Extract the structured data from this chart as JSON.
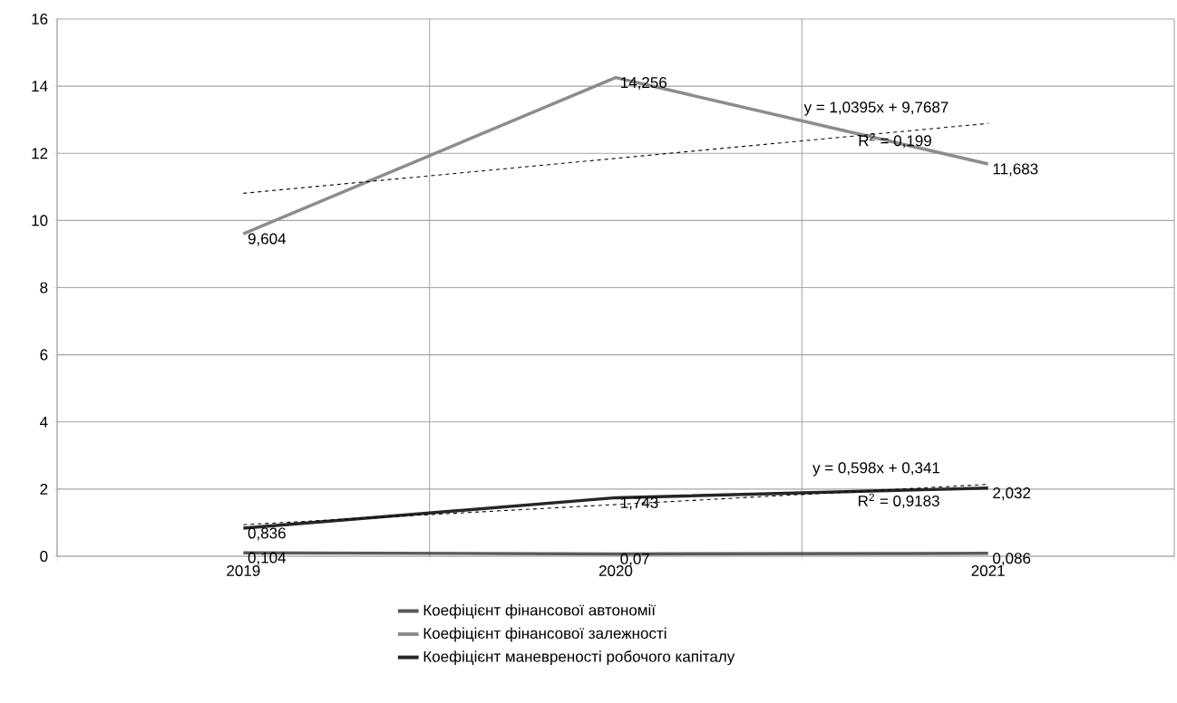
{
  "chart_data": {
    "type": "line",
    "categories": [
      "2019",
      "2020",
      "2021"
    ],
    "ylim": [
      0,
      16
    ],
    "yticks": [
      0,
      2,
      4,
      6,
      8,
      10,
      12,
      14,
      16
    ],
    "grid": true,
    "legend": "bottom",
    "marker": "none",
    "line_style": "solid",
    "series": [
      {
        "name": "Коефіцієнт фінансової автономії",
        "color": "#595959",
        "values": [
          0.104,
          0.07,
          0.086
        ],
        "value_labels": [
          "0,104",
          "0,07",
          "0,086"
        ]
      },
      {
        "name": "Коефіцієнт фінансової залежності",
        "color": "#8c8c8c",
        "values": [
          9.604,
          14.256,
          11.683
        ],
        "value_labels": [
          "9,604",
          "14,256",
          "11,683"
        ]
      },
      {
        "name": "Коефіцієнт маневреності робочого капіталу",
        "color": "#262626",
        "values": [
          0.836,
          1.743,
          2.032
        ],
        "value_labels": [
          "0,836",
          "1,743",
          "2,032"
        ]
      },
      {
        "type": "line",
        "color": "#000000",
        "line_style": "dashed",
        "values": [
          10.81,
          11.85,
          12.89
        ]
      },
      {
        "type": "line",
        "color": "#000000",
        "line_style": "dashed",
        "values": [
          0.94,
          1.54,
          2.14
        ]
      }
    ],
    "annotations": [
      "y = 1,0395x + 9,7687",
      "R$^{2}$ = 0,199",
      "y = 0,598x + 0,341",
      "R$^{2}$ = 0,9183"
    ]
  }
}
